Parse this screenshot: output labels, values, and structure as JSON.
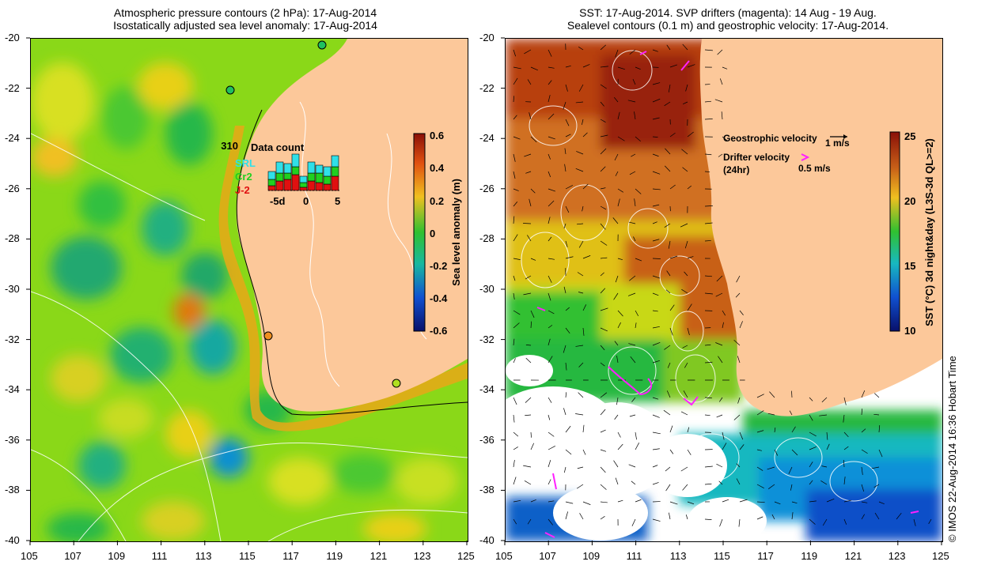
{
  "left_panel": {
    "title_line1": "Atmospheric pressure contours (2 hPa): 17-Aug-2014",
    "title_line2": "Isostatically adjusted sea level anomaly: 17-Aug-2014",
    "colorbar": {
      "label": "Sea level anomaly (m)",
      "ticks": [
        "0.6",
        "0.4",
        "0.2",
        "0",
        "-0.2",
        "-0.4",
        "-0.6"
      ]
    },
    "inset": {
      "title": "Data count",
      "max_count": "310",
      "legend": [
        {
          "label": "SRL",
          "color": "#30e0e8"
        },
        {
          "label": "Cr2",
          "color": "#20d020"
        },
        {
          "label": "J-2",
          "color": "#e01010"
        }
      ],
      "x_ticks": [
        "-5d",
        "0",
        "5"
      ]
    }
  },
  "right_panel": {
    "title_line1": "SST: 17-Aug-2014. SVP drifters (magenta): 14 Aug - 19 Aug.",
    "title_line2": "Sealevel contours (0.1 m) and geostrophic velocity: 17-Aug-2014.",
    "legend_geostrophic": "Geostrophic velocity",
    "legend_geostrophic_scale": "1 m/s",
    "legend_drifter": "Drifter velocity",
    "legend_drifter_sub": "(24hr)",
    "legend_drifter_scale": "0.5 m/s",
    "colorbar": {
      "label": "SST (°C) 3d night&day (L3S-3d QL>=2)",
      "ticks": [
        "25",
        "20",
        "15",
        "10"
      ]
    }
  },
  "axes": {
    "x_ticks": [
      "105",
      "107",
      "109",
      "111",
      "113",
      "115",
      "117",
      "119",
      "121",
      "123",
      "125"
    ],
    "y_ticks": [
      "-20",
      "-22",
      "-24",
      "-26",
      "-28",
      "-30",
      "-32",
      "-34",
      "-36",
      "-38",
      "-40"
    ]
  },
  "credit": "© IMOS 22-Aug-2014 16:36 Hobart Time",
  "colors": {
    "land": "#fcc89a",
    "drifter": "#ff20ff",
    "contour": "#ffffff"
  }
}
